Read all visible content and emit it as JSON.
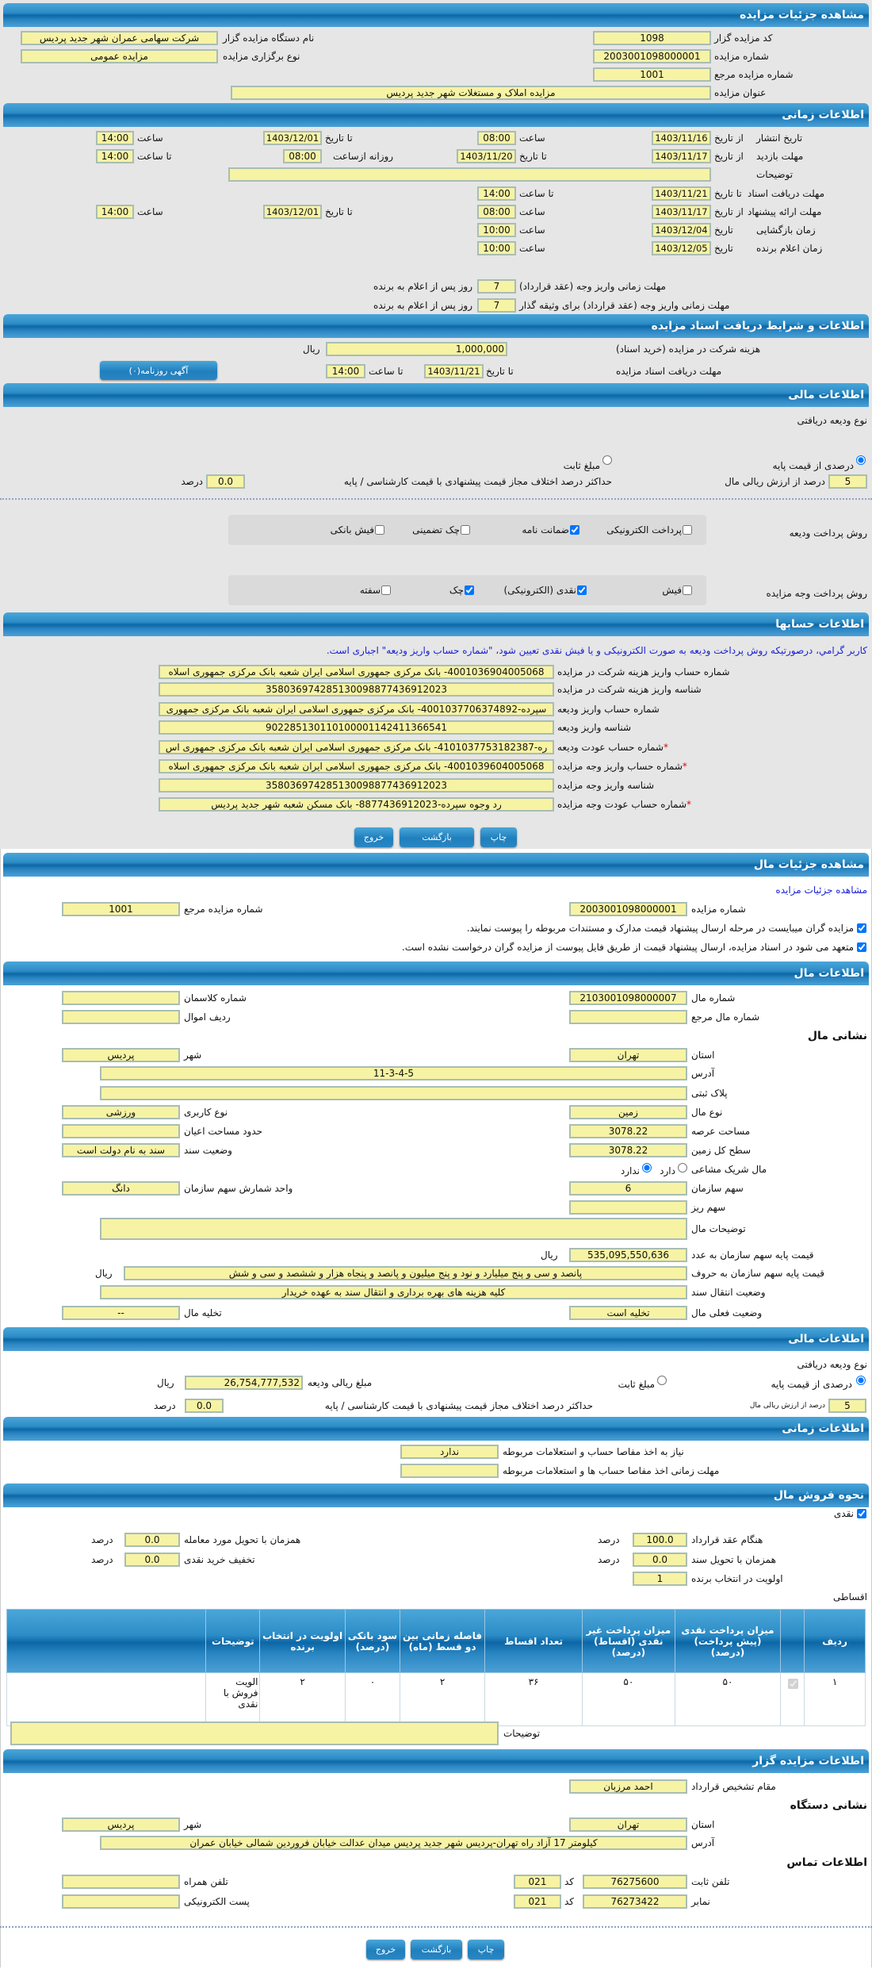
{
  "sec1": {
    "title": "مشاهده جزئیات مزایده",
    "code_label": "کد مزایده گزار",
    "code": "1098",
    "org_label": "نام دستگاه مزایده گزار",
    "org": "شرکت سهامی عمران شهر جدید پردیس",
    "number_label": "شماره مزایده",
    "number": "2003001098000001",
    "holding_type_label": "نوع برگزاری مزایده",
    "holding_type": "مزایده عمومی",
    "ref_label": "شماره مزایده مرجع",
    "ref": "1001",
    "subject_label": "عنوان مزایده",
    "subject": "مزایده املاک و مستغلات شهر جدید پردیس"
  },
  "time": {
    "title": "اطلاعات زمانی",
    "from_date": "از تاریخ",
    "to_date": "تا تاریخ",
    "date": "تاریخ",
    "hour": "ساعت",
    "to_hour": "تا ساعت",
    "daily_from_hour": "روزانه ازساعت",
    "publish": {
      "label": "تاریخ انتشار",
      "from": "1403/11/16",
      "from_time": "08:00",
      "to": "1403/12/01",
      "to_time": "14:00"
    },
    "visit": {
      "label": "مهلت بازدید",
      "from": "1403/11/17",
      "to": "1403/11/20",
      "daily_from": "08:00",
      "daily_to": "14:00"
    },
    "notes": {
      "label": "توضیحات",
      "value": ""
    },
    "docs": {
      "label": "مهلت دریافت اسناد",
      "to": "1403/11/21",
      "to_time": "14:00"
    },
    "offer": {
      "label": "مهلت ارائه پیشنهاد",
      "from": "1403/11/17",
      "from_time": "08:00",
      "to": "1403/12/01",
      "to_time": "14:00"
    },
    "opening": {
      "label": "زمان بازگشایی",
      "date": "1403/12/04",
      "time": "10:00"
    },
    "winner": {
      "label": "زمان اعلام برنده",
      "date": "1403/12/05",
      "time": "10:00"
    },
    "pay1": {
      "label": "مهلت زمانی واریز وجه (عقد قرارداد)",
      "days": "7"
    },
    "pay2": {
      "label": "مهلت زمانی واریز وجه (عقد قرارداد) برای وثیقه گذار",
      "days": "7"
    },
    "days_suffix": "روز پس از اعلام به برنده"
  },
  "docs_sec": {
    "title": "اطلاعات و شرایط دریافت اسناد مزایده",
    "fee_label": "هزینه شرکت در مزایده (خرید اسناد)",
    "fee": "1,000,000",
    "rial": "ریال",
    "deadline_label": "مهلت دریافت اسناد مزایده",
    "to_date_label": "تا تاریخ",
    "to_date": "1403/11/21",
    "to_time_label": "تا ساعت",
    "to_time": "14:00",
    "ad_button": "آگهی روزنامه(۰)"
  },
  "finance": {
    "title": "اطلاعات مالی",
    "deposit_type_label": "نوع ودیعه دریافتی",
    "percent_option": "درصدی از قیمت پایه",
    "percent_selected": true,
    "fixed_option": "مبلغ ثابت",
    "fixed_selected": false,
    "percent_value": "5",
    "percent_suffix": "درصد از ارزش ریالی مال",
    "max_diff_label": "حداکثر درصد اختلاف مجاز قیمت پیشنهادی با قیمت کارشناسی / پایه",
    "max_diff": "0.0",
    "percent_unit": "درصد",
    "deposit_methods_label": "روش پرداخت ودیعه",
    "deposit_methods": [
      {
        "label": "پرداخت الکترونیکی",
        "checked": false
      },
      {
        "label": "ضمانت نامه",
        "checked": true
      },
      {
        "label": "چک تضمینی",
        "checked": false
      },
      {
        "label": "فیش بانکی",
        "checked": false
      }
    ],
    "payment_methods_label": "روش پرداخت وجه مزایده",
    "payment_methods": [
      {
        "label": "فیش",
        "checked": false
      },
      {
        "label": "نقدی (الکترونیکی)",
        "checked": true
      },
      {
        "label": "چک",
        "checked": true
      },
      {
        "label": "سفته",
        "checked": false
      }
    ]
  },
  "accounts": {
    "title": "اطلاعات حسابها",
    "notice": "کاربر گرامي، درصورتیکه روش پرداخت ودیعه به صورت الکترونیکی و یا فیش نقدی تعیین شود، \"شماره حساب واریز ودیعه\" اجباری است.",
    "rows": [
      {
        "label": "شماره حساب واریز هزینه شرکت در مزایده",
        "value": "4001036904005068- بانک مرکزی جمهوری اسلامی ایران شعبه بانک مرکزی جمهوری اسلاه",
        "required": false
      },
      {
        "label": "شناسه واریز هزینه شرکت در مزایده",
        "value": "358036974285130098877436912023",
        "required": false
      },
      {
        "label": "شماره حساب واریز ودیعه",
        "value": "سپرده-4001037706374892- بانک مرکزی جمهوری اسلامی ایران شعبه بانک مرکزی جمهوری",
        "required": false
      },
      {
        "label": "شناسه واریز ودیعه",
        "value": "902285130110100001142411366541",
        "required": false
      },
      {
        "label": "شماره حساب عودت ودیعه",
        "value": "ره-4101037753182387- بانک مرکزی جمهوری اسلامی ایران شعبه بانک مرکزی جمهوری اس",
        "required": true
      },
      {
        "label": "شماره حساب واریز وجه مزایده",
        "value": "4001039604005068- بانک مرکزی جمهوری اسلامی ایران شعبه بانک مرکزی جمهوری اسلاه",
        "required": true
      },
      {
        "label": "شناسه واریز وجه مزایده",
        "value": "358036974285130098877436912023",
        "required": false
      },
      {
        "label": "شماره حساب عودت وجه مزایده",
        "value": "رد وجوه سپرده-8877436912023- بانک مسکن شعبه شهر جدید پردیس",
        "required": true
      }
    ]
  },
  "buttons": {
    "print": "چاپ",
    "back": "بازگشت",
    "exit": "خروج"
  },
  "item": {
    "title": "مشاهده جزئیات مال",
    "link": "مشاهده جزئیات مزایده",
    "number_label": "شماره مزایده",
    "number": "2003001098000001",
    "ref_label": "شماره مزایده مرجع",
    "ref": "1001",
    "check1": {
      "label": "مزایده گران میبایست در مرحله ارسال پیشنهاد قیمت مدارک و مستندات مربوطه را پیوست نمایند.",
      "checked": true
    },
    "check2": {
      "label": "متعهد می شود در اسناد مزایده، ارسال پیشنهاد قیمت از طریق فایل پیوست از مزایده گران درخواست نشده است.",
      "checked": true
    }
  },
  "item_info": {
    "title": "اطلاعات مال",
    "item_no_label": "شماره مال",
    "item_no": "2103001098000007",
    "cadastre_label": "شماره کلاسمان",
    "cadastre": "",
    "item_ref_label": "شماره مال مرجع",
    "item_ref": "",
    "asset_row_label": "ردیف اموال",
    "asset_row": "",
    "address_heading": "نشانی مال",
    "province_label": "استان",
    "province": "تهران",
    "city_label": "شهر",
    "city": "پردیس",
    "address_label": "آدرس",
    "address": "11-3-4-5",
    "plate_label": "پلاک ثبتی",
    "plate": "",
    "type_label": "نوع مال",
    "type": "زمین",
    "usage_label": "نوع کاربری",
    "usage": "ورزشی",
    "land_area_label": "مساحت عرصه",
    "land_area": "3078.22",
    "building_area_label": "حدود مساحت اعیان",
    "building_area": "",
    "total_area_label": "سطح کل زمین",
    "total_area": "3078.22",
    "deed_label": "وضعیت سند",
    "deed": "سند به نام دولت است",
    "partner_label": "مال شریک مشاعی",
    "partner_yes": "دارد",
    "partner_no": "ندارد",
    "partner_has": false,
    "share_label": "سهم سازمان",
    "share": "6",
    "share_unit_label": "واحد شمارش سهم سازمان",
    "share_unit": "دانگ",
    "small_share_label": "سهم ریز",
    "small_share": "",
    "desc_label": "توضیحات مال",
    "desc": "",
    "price_label": "قیمت پایه سهم سازمان به عدد",
    "price": "535,095,550,636",
    "rial": "ریال",
    "price_words_label": "قیمت پایه سهم سازمان به حروف",
    "price_words": "پانصد و سی و پنج میلیارد و نود و پنج میلیون و پانصد و پنجاه هزار و ششصد و سی و شش",
    "transfer_label": "وضعیت انتقال سند",
    "transfer": "کلیه هزینه های بهره برداری و انتقال سند به عهده خریدار",
    "status_label": "وضعیت فعلی مال",
    "status": "تخلیه است",
    "evacuation_label": "تخلیه مال",
    "evacuation": "--"
  },
  "item_finance": {
    "title": "اطلاعات مالی",
    "deposit_type_label": "نوع ودیعه دریافتی",
    "percent_option": "درصدی از قیمت پایه",
    "percent_selected": true,
    "fixed_option": "مبلغ ثابت",
    "fixed_selected": false,
    "deposit_amount_label": "مبلغ ریالی ودیعه",
    "deposit_amount": "26,754,777,532",
    "rial": "ریال",
    "percent_value": "5",
    "percent_suffix": "درصد از ارزش ریالی مال",
    "max_diff_label": "حداکثر درصد اختلاف مجاز قیمت پیشنهادی با قیمت کارشناسی / پایه",
    "max_diff": "0.0",
    "percent_unit": "درصد"
  },
  "item_time": {
    "title": "اطلاعات زمانی",
    "clearance_label": "نیاز به اخذ مفاصا حساب و استعلامات مربوطه",
    "clearance": "ندارد",
    "clearance_deadline_label": "مهلت زمانی اخذ مفاصا حساب ها و استعلامات مربوطه",
    "clearance_deadline": ""
  },
  "sale": {
    "title": "نحوه فروش مال",
    "cash_label": "نقدی",
    "cash_checked": true,
    "on_contract_label": "هنگام عقد قرارداد",
    "on_contract": "100.0",
    "on_deed_label": "همزمان با تحویل سند",
    "on_deed": "0.0",
    "on_delivery_label": "همزمان با تحویل مورد معامله",
    "on_delivery": "0.0",
    "cash_discount_label": "تخفیف خرید نقدی",
    "cash_discount": "0.0",
    "priority_label": "اولویت در انتخاب برنده",
    "priority": "1",
    "percent_unit": "درصد",
    "installment_label": "اقساطی",
    "table": {
      "columns": [
        "ردیف",
        "",
        "میزان پرداخت نقدی (پیش پرداخت) (درصد)",
        "میزان پرداخت غیر نقدی (اقساط) (درصد)",
        "تعداد اقساط",
        "فاصله زمانی بین دو قسط (ماه)",
        "سود بانکی (درصد)",
        "اولویت در انتخاب برنده",
        "توضیحات",
        ""
      ],
      "rows": [
        {
          "index": "۱",
          "checked": true,
          "cash": "۵۰",
          "non_cash": "۵۰",
          "count": "۳۶",
          "interval": "۲",
          "interest": "۰",
          "priority": "۲",
          "notes": "الویت فروش با نقدی"
        }
      ]
    },
    "notes_label": "توضیحات",
    "notes": ""
  },
  "auctioneer": {
    "title": "اطلاعات مزایده گزار",
    "authority_label": "مقام تشخیص قرارداد",
    "authority": "احمد مرزبان",
    "address_heading": "نشانی دستگاه",
    "province_label": "استان",
    "province": "تهران",
    "city_label": "شهر",
    "city": "پردیس",
    "address_label": "آدرس",
    "address": "کیلومتر 17 آزاد راه تهران-پردیس شهر جدید پردیس میدان عدالت خیابان فروردین شمالی خیابان عمران",
    "contact_heading": "اطلاعات تماس",
    "phone_label": "تلفن ثابت",
    "phone": "76275600",
    "code_label": "کد",
    "phone_code": "021",
    "mobile_label": "تلفن همراه",
    "mobile": "",
    "fax_label": "نمابر",
    "fax": "76273422",
    "fax_code": "021",
    "email_label": "پست الکترونیکی",
    "email": ""
  },
  "colors": {
    "header": "#1a78b4",
    "input_bg": "#f7f3a4",
    "panel_bg": "#e6e6e6",
    "notice": "#1a22d6",
    "required": "#d01010"
  }
}
